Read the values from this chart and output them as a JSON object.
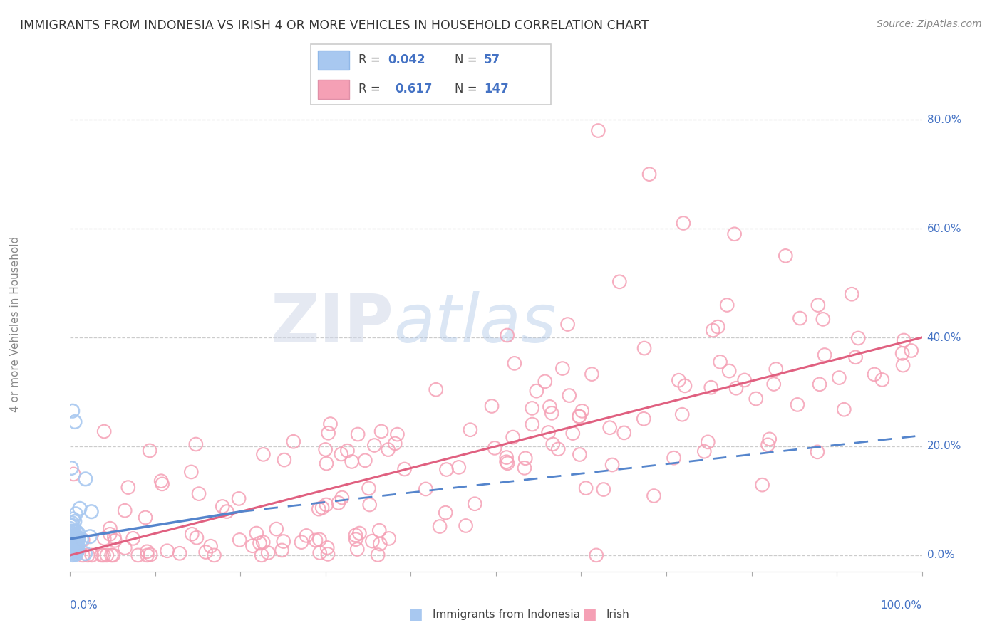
{
  "title": "IMMIGRANTS FROM INDONESIA VS IRISH 4 OR MORE VEHICLES IN HOUSEHOLD CORRELATION CHART",
  "source": "Source: ZipAtlas.com",
  "ylabel": "4 or more Vehicles in Household",
  "ytick_labels": [
    "0.0%",
    "20.0%",
    "40.0%",
    "60.0%",
    "80.0%"
  ],
  "ytick_values": [
    0,
    20,
    40,
    60,
    80
  ],
  "xlim": [
    0,
    100
  ],
  "ylim": [
    -3,
    88
  ],
  "color_indonesia": "#a8c8f0",
  "color_irish": "#f5a0b5",
  "color_indonesia_line": "#5585cc",
  "color_irish_line": "#e06080",
  "color_text_blue": "#4472c4",
  "watermark_zip": "ZIP",
  "watermark_atlas": "atlas",
  "seed": 42
}
